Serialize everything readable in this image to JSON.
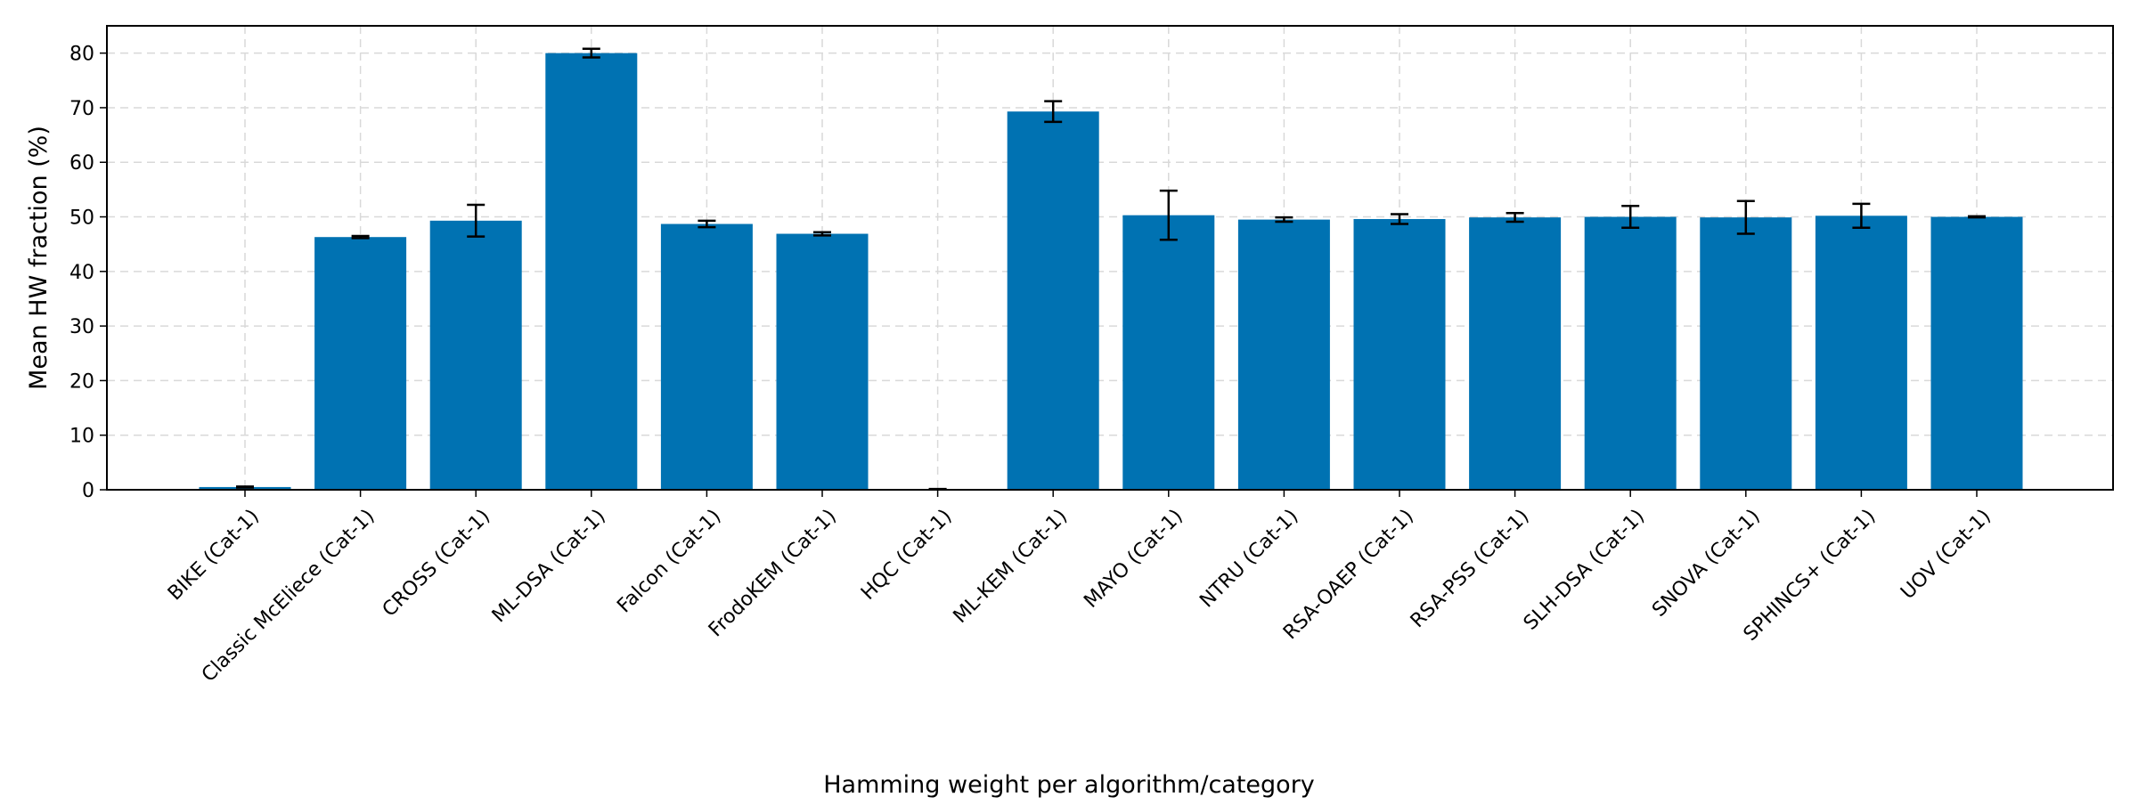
{
  "chart_data": {
    "type": "bar",
    "title": "",
    "xlabel": "Hamming weight per algorithm/category",
    "ylabel": "Mean HW fraction (%)",
    "ylim": [
      0,
      85
    ],
    "yticks": [
      0,
      10,
      20,
      30,
      40,
      50,
      60,
      70,
      80
    ],
    "grid": true,
    "bar_color": "#0072b2",
    "categories": [
      "BIKE (Cat-1)",
      "Classic McEliece (Cat-1)",
      "CROSS (Cat-1)",
      "ML-DSA (Cat-1)",
      "Falcon (Cat-1)",
      "FrodoKEM (Cat-1)",
      "HQC (Cat-1)",
      "ML-KEM (Cat-1)",
      "MAYO (Cat-1)",
      "NTRU (Cat-1)",
      "RSA-OAEP (Cat-1)",
      "RSA-PSS (Cat-1)",
      "SLH-DSA (Cat-1)",
      "SNOVA (Cat-1)",
      "SPHINCS+ (Cat-1)",
      "UOV (Cat-1)"
    ],
    "values": [
      0.5,
      46.3,
      49.3,
      80.0,
      48.7,
      46.9,
      0.1,
      69.3,
      50.3,
      49.5,
      49.6,
      49.9,
      50.0,
      49.9,
      50.2,
      50.0
    ],
    "errors": [
      0.1,
      0.2,
      2.9,
      0.8,
      0.6,
      0.3,
      0.05,
      1.9,
      4.5,
      0.4,
      0.9,
      0.8,
      2.0,
      3.0,
      2.2,
      0.1
    ]
  }
}
